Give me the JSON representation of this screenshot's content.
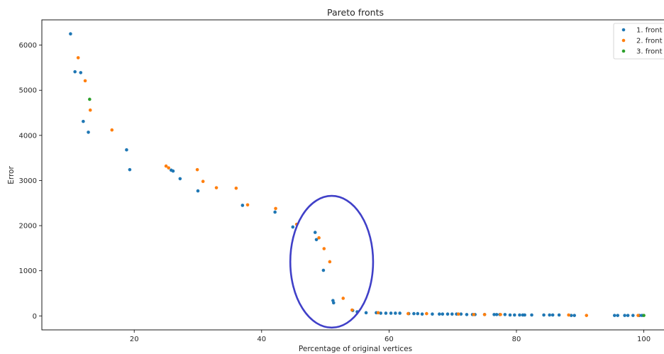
{
  "chart_data": {
    "type": "scatter",
    "title": "Pareto fronts",
    "xlabel": "Percentage of original vertices",
    "ylabel": "Error",
    "xlim": [
      5.5,
      103.5
    ],
    "ylim": [
      -310,
      6560
    ],
    "x_ticks": [
      20,
      40,
      60,
      80,
      100
    ],
    "y_ticks": [
      0,
      1000,
      2000,
      3000,
      4000,
      5000,
      6000
    ],
    "x_tick_labels": [
      "20",
      "40",
      "60",
      "80",
      "100"
    ],
    "y_tick_labels": [
      "0",
      "1000",
      "2000",
      "3000",
      "4000",
      "5000",
      "6000"
    ],
    "grid": false,
    "legend_position": "top-right",
    "series": [
      {
        "name": "1. front",
        "color": "#1f77b4",
        "points": [
          [
            10.0,
            6250
          ],
          [
            10.7,
            5410
          ],
          [
            11.6,
            5390
          ],
          [
            12.0,
            4310
          ],
          [
            12.8,
            4070
          ],
          [
            18.8,
            3680
          ],
          [
            19.3,
            3240
          ],
          [
            25.8,
            3230
          ],
          [
            26.1,
            3210
          ],
          [
            27.2,
            3040
          ],
          [
            30.0,
            2770
          ],
          [
            37.0,
            2450
          ],
          [
            42.1,
            2300
          ],
          [
            44.9,
            1970
          ],
          [
            48.4,
            1850
          ],
          [
            48.6,
            1690
          ],
          [
            49.7,
            1010
          ],
          [
            51.2,
            340
          ],
          [
            51.3,
            290
          ],
          [
            54.3,
            120
          ],
          [
            55.0,
            90
          ],
          [
            56.4,
            70
          ],
          [
            58.0,
            70
          ],
          [
            58.7,
            60
          ],
          [
            59.5,
            60
          ],
          [
            60.3,
            60
          ],
          [
            61.0,
            60
          ],
          [
            61.7,
            60
          ],
          [
            63.1,
            50
          ],
          [
            63.9,
            50
          ],
          [
            64.5,
            50
          ],
          [
            65.2,
            40
          ],
          [
            66.8,
            40
          ],
          [
            67.9,
            40
          ],
          [
            68.4,
            40
          ],
          [
            69.2,
            40
          ],
          [
            69.9,
            40
          ],
          [
            70.6,
            40
          ],
          [
            71.3,
            40
          ],
          [
            72.2,
            30
          ],
          [
            73.1,
            30
          ],
          [
            73.5,
            30
          ],
          [
            75.0,
            30
          ],
          [
            76.5,
            30
          ],
          [
            76.9,
            30
          ],
          [
            77.4,
            30
          ],
          [
            78.2,
            30
          ],
          [
            79.0,
            20
          ],
          [
            79.7,
            20
          ],
          [
            80.5,
            20
          ],
          [
            81.0,
            20
          ],
          [
            81.3,
            20
          ],
          [
            82.4,
            20
          ],
          [
            84.3,
            20
          ],
          [
            85.2,
            20
          ],
          [
            85.7,
            20
          ],
          [
            86.7,
            20
          ],
          [
            88.6,
            10
          ],
          [
            89.1,
            10
          ],
          [
            95.4,
            10
          ],
          [
            95.9,
            10
          ],
          [
            97.0,
            10
          ],
          [
            97.5,
            10
          ],
          [
            98.3,
            10
          ],
          [
            99.3,
            10
          ],
          [
            99.7,
            10
          ]
        ]
      },
      {
        "name": "2. front",
        "color": "#ff7f0e",
        "points": [
          [
            11.2,
            5720
          ],
          [
            12.3,
            5210
          ],
          [
            13.1,
            4560
          ],
          [
            16.5,
            4120
          ],
          [
            25.0,
            3320
          ],
          [
            25.4,
            3280
          ],
          [
            29.9,
            3240
          ],
          [
            30.8,
            2980
          ],
          [
            32.9,
            2840
          ],
          [
            36.0,
            2830
          ],
          [
            37.8,
            2460
          ],
          [
            42.2,
            2380
          ],
          [
            45.5,
            2030
          ],
          [
            49.0,
            1730
          ],
          [
            49.8,
            1490
          ],
          [
            50.7,
            1200
          ],
          [
            52.8,
            390
          ],
          [
            54.2,
            130
          ],
          [
            58.3,
            70
          ],
          [
            63.0,
            50
          ],
          [
            65.9,
            50
          ],
          [
            70.9,
            40
          ],
          [
            73.3,
            30
          ],
          [
            75.0,
            30
          ],
          [
            77.5,
            30
          ],
          [
            88.2,
            20
          ],
          [
            91.0,
            10
          ],
          [
            99.1,
            10
          ]
        ]
      },
      {
        "name": "3. front",
        "color": "#2ca02c",
        "points": [
          [
            13.0,
            4800
          ],
          [
            100.0,
            10
          ]
        ]
      }
    ],
    "annotations": [
      {
        "type": "ellipse",
        "color": "#4040c8",
        "center": [
          51.0,
          1200
        ],
        "x_radius": 6.5,
        "y_radius": 1460
      }
    ]
  }
}
